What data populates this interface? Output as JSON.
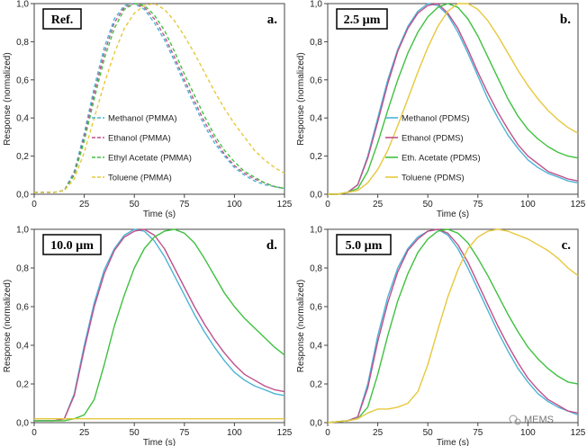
{
  "colors": {
    "Methanol": "#4bb4d6",
    "Ethanol": "#c0508a",
    "Ethyl Acetate": "#3fc13f",
    "Toluene": "#e6c83c"
  },
  "axes": {
    "xlabel": "Time (s)",
    "ylabel": "Response (normalized)",
    "x_ticks": [
      "0",
      "25",
      "50",
      "75",
      "100",
      "125"
    ],
    "y_ticks": [
      "0,0",
      "0,2",
      "0,4",
      "0,6",
      "0,8",
      "1,0"
    ]
  },
  "chart_data": [
    {
      "type": "line",
      "tag": "Ref.",
      "letter": "a.",
      "dashed": true,
      "xlim": [
        0,
        125
      ],
      "ylim": [
        0,
        1
      ],
      "grid": false,
      "legend_position": "bottom-center",
      "series": [
        {
          "name": "Methanol (PMMA)",
          "key": "Methanol",
          "x": [
            0,
            10,
            15,
            20,
            25,
            30,
            35,
            40,
            45,
            50,
            55,
            60,
            65,
            70,
            75,
            80,
            85,
            90,
            95,
            100,
            105,
            110,
            115,
            120,
            125
          ],
          "y": [
            0.01,
            0.01,
            0.02,
            0.12,
            0.32,
            0.56,
            0.77,
            0.92,
            0.99,
            1.0,
            0.97,
            0.9,
            0.81,
            0.7,
            0.58,
            0.47,
            0.36,
            0.27,
            0.2,
            0.14,
            0.1,
            0.07,
            0.05,
            0.04,
            0.03
          ]
        },
        {
          "name": "Ethanol (PMMA)",
          "key": "Ethanol",
          "x": [
            0,
            10,
            15,
            20,
            25,
            30,
            35,
            40,
            45,
            50,
            55,
            60,
            65,
            70,
            75,
            80,
            85,
            90,
            95,
            100,
            105,
            110,
            115,
            120,
            125
          ],
          "y": [
            0.01,
            0.01,
            0.02,
            0.11,
            0.3,
            0.53,
            0.74,
            0.9,
            0.98,
            1.0,
            0.98,
            0.92,
            0.83,
            0.72,
            0.6,
            0.49,
            0.38,
            0.29,
            0.21,
            0.15,
            0.11,
            0.08,
            0.06,
            0.04,
            0.03
          ]
        },
        {
          "name": "Ethyl Acetate (PMMA)",
          "key": "Ethyl Acetate",
          "x": [
            0,
            10,
            15,
            20,
            25,
            30,
            35,
            40,
            45,
            50,
            55,
            60,
            65,
            70,
            75,
            80,
            85,
            90,
            95,
            100,
            105,
            110,
            115,
            120,
            125
          ],
          "y": [
            0.01,
            0.01,
            0.02,
            0.1,
            0.28,
            0.5,
            0.71,
            0.87,
            0.97,
            1.0,
            0.99,
            0.94,
            0.86,
            0.75,
            0.63,
            0.52,
            0.41,
            0.31,
            0.23,
            0.17,
            0.12,
            0.09,
            0.06,
            0.04,
            0.03
          ]
        },
        {
          "name": "Toluene (PMMA)",
          "key": "Toluene",
          "x": [
            0,
            10,
            15,
            20,
            25,
            30,
            35,
            40,
            45,
            50,
            55,
            60,
            65,
            70,
            75,
            80,
            85,
            90,
            95,
            100,
            105,
            110,
            115,
            120,
            125
          ],
          "y": [
            0.01,
            0.01,
            0.02,
            0.08,
            0.22,
            0.4,
            0.58,
            0.74,
            0.87,
            0.95,
            0.99,
            1.0,
            0.97,
            0.91,
            0.83,
            0.74,
            0.64,
            0.54,
            0.45,
            0.37,
            0.3,
            0.23,
            0.18,
            0.14,
            0.11
          ]
        }
      ]
    },
    {
      "type": "line",
      "tag": "2.5 µm",
      "letter": "b.",
      "dashed": false,
      "xlim": [
        0,
        125
      ],
      "ylim": [
        0,
        1
      ],
      "grid": false,
      "legend_position": "bottom-center",
      "series": [
        {
          "name": "Methanol (PDMS)",
          "key": "Methanol",
          "x": [
            0,
            5,
            10,
            15,
            20,
            25,
            30,
            35,
            40,
            45,
            50,
            55,
            60,
            65,
            70,
            75,
            80,
            85,
            90,
            95,
            100,
            105,
            110,
            115,
            120,
            125
          ],
          "y": [
            0.0,
            0.0,
            0.01,
            0.05,
            0.2,
            0.4,
            0.6,
            0.76,
            0.88,
            0.96,
            1.0,
            0.99,
            0.94,
            0.85,
            0.74,
            0.62,
            0.5,
            0.4,
            0.31,
            0.24,
            0.18,
            0.14,
            0.11,
            0.09,
            0.07,
            0.06
          ]
        },
        {
          "name": "Ethanol (PDMS)",
          "key": "Ethanol",
          "x": [
            0,
            5,
            10,
            15,
            20,
            25,
            30,
            35,
            40,
            45,
            50,
            55,
            60,
            65,
            70,
            75,
            80,
            85,
            90,
            95,
            100,
            105,
            110,
            115,
            120,
            125
          ],
          "y": [
            0.0,
            0.0,
            0.01,
            0.05,
            0.19,
            0.38,
            0.58,
            0.75,
            0.87,
            0.95,
            0.99,
            1.0,
            0.95,
            0.87,
            0.76,
            0.64,
            0.53,
            0.43,
            0.34,
            0.26,
            0.2,
            0.16,
            0.12,
            0.1,
            0.08,
            0.07
          ]
        },
        {
          "name": "Eth. Acetate (PDMS)",
          "key": "Ethyl Acetate",
          "x": [
            0,
            5,
            10,
            15,
            20,
            25,
            30,
            35,
            40,
            45,
            50,
            55,
            60,
            65,
            70,
            75,
            80,
            85,
            90,
            95,
            100,
            105,
            110,
            115,
            120,
            125
          ],
          "y": [
            0.0,
            0.0,
            0.01,
            0.03,
            0.12,
            0.27,
            0.44,
            0.6,
            0.74,
            0.85,
            0.93,
            0.98,
            1.0,
            0.98,
            0.92,
            0.83,
            0.72,
            0.61,
            0.5,
            0.41,
            0.34,
            0.29,
            0.25,
            0.22,
            0.2,
            0.19
          ]
        },
        {
          "name": "Toluene (PDMS)",
          "key": "Toluene",
          "x": [
            0,
            5,
            10,
            15,
            20,
            25,
            30,
            35,
            40,
            45,
            50,
            55,
            60,
            65,
            70,
            75,
            80,
            85,
            90,
            95,
            100,
            105,
            110,
            115,
            120,
            125
          ],
          "y": [
            0.0,
            0.0,
            0.01,
            0.02,
            0.06,
            0.13,
            0.23,
            0.36,
            0.5,
            0.64,
            0.77,
            0.88,
            0.96,
            1.0,
            1.0,
            0.97,
            0.91,
            0.83,
            0.74,
            0.65,
            0.57,
            0.5,
            0.44,
            0.39,
            0.35,
            0.32
          ]
        }
      ]
    },
    {
      "type": "line",
      "tag": "10.0 µm",
      "letter": "d.",
      "dashed": false,
      "xlim": [
        0,
        125
      ],
      "ylim": [
        0,
        1
      ],
      "grid": false,
      "legend_position": "none",
      "series": [
        {
          "name": "Methanol",
          "key": "Methanol",
          "x": [
            0,
            10,
            15,
            20,
            25,
            30,
            35,
            40,
            45,
            50,
            55,
            60,
            65,
            70,
            75,
            80,
            85,
            90,
            95,
            100,
            105,
            110,
            115,
            120,
            125
          ],
          "y": [
            0.01,
            0.01,
            0.02,
            0.15,
            0.4,
            0.62,
            0.79,
            0.9,
            0.97,
            1.0,
            0.99,
            0.94,
            0.86,
            0.76,
            0.66,
            0.56,
            0.47,
            0.39,
            0.32,
            0.26,
            0.22,
            0.19,
            0.17,
            0.15,
            0.14
          ]
        },
        {
          "name": "Ethanol",
          "key": "Ethanol",
          "x": [
            0,
            10,
            15,
            20,
            25,
            30,
            35,
            40,
            45,
            50,
            55,
            60,
            65,
            70,
            75,
            80,
            85,
            90,
            95,
            100,
            105,
            110,
            115,
            120,
            125
          ],
          "y": [
            0.01,
            0.01,
            0.02,
            0.14,
            0.38,
            0.6,
            0.77,
            0.89,
            0.96,
            0.99,
            1.0,
            0.97,
            0.9,
            0.8,
            0.7,
            0.6,
            0.51,
            0.43,
            0.36,
            0.3,
            0.25,
            0.22,
            0.19,
            0.17,
            0.16
          ]
        },
        {
          "name": "Ethyl Acetate",
          "key": "Ethyl Acetate",
          "x": [
            0,
            10,
            15,
            20,
            25,
            30,
            35,
            40,
            45,
            50,
            55,
            60,
            65,
            70,
            75,
            80,
            85,
            90,
            95,
            100,
            105,
            110,
            115,
            120,
            125
          ],
          "y": [
            0.01,
            0.01,
            0.01,
            0.02,
            0.04,
            0.12,
            0.3,
            0.5,
            0.66,
            0.8,
            0.9,
            0.96,
            0.99,
            1.0,
            0.98,
            0.93,
            0.85,
            0.76,
            0.67,
            0.6,
            0.54,
            0.49,
            0.44,
            0.39,
            0.35
          ]
        },
        {
          "name": "Toluene",
          "key": "Toluene",
          "x": [
            0,
            25,
            50,
            75,
            100,
            125
          ],
          "y": [
            0.02,
            0.02,
            0.02,
            0.02,
            0.02,
            0.02
          ]
        }
      ]
    },
    {
      "type": "line",
      "tag": "5.0 µm",
      "letter": "c.",
      "dashed": false,
      "xlim": [
        0,
        125
      ],
      "ylim": [
        0,
        1
      ],
      "grid": false,
      "legend_position": "none",
      "series": [
        {
          "name": "Methanol",
          "key": "Methanol",
          "x": [
            0,
            10,
            15,
            20,
            25,
            30,
            35,
            40,
            45,
            50,
            55,
            60,
            65,
            70,
            75,
            80,
            85,
            90,
            95,
            100,
            105,
            110,
            115,
            120,
            125
          ],
          "y": [
            0.0,
            0.01,
            0.03,
            0.2,
            0.45,
            0.65,
            0.8,
            0.9,
            0.96,
            0.99,
            1.0,
            0.97,
            0.9,
            0.8,
            0.69,
            0.58,
            0.47,
            0.37,
            0.28,
            0.21,
            0.15,
            0.11,
            0.08,
            0.06,
            0.04
          ]
        },
        {
          "name": "Ethanol",
          "key": "Ethanol",
          "x": [
            0,
            10,
            15,
            20,
            25,
            30,
            35,
            40,
            45,
            50,
            55,
            60,
            65,
            70,
            75,
            80,
            85,
            90,
            95,
            100,
            105,
            110,
            115,
            120,
            125
          ],
          "y": [
            0.0,
            0.01,
            0.03,
            0.18,
            0.42,
            0.62,
            0.78,
            0.89,
            0.95,
            0.99,
            1.0,
            0.98,
            0.92,
            0.83,
            0.72,
            0.61,
            0.5,
            0.4,
            0.31,
            0.23,
            0.17,
            0.12,
            0.09,
            0.06,
            0.05
          ]
        },
        {
          "name": "Ethyl Acetate",
          "key": "Ethyl Acetate",
          "x": [
            0,
            10,
            15,
            20,
            25,
            30,
            35,
            40,
            45,
            50,
            55,
            60,
            65,
            70,
            75,
            80,
            85,
            90,
            95,
            100,
            105,
            110,
            115,
            120,
            125
          ],
          "y": [
            0.0,
            0.01,
            0.02,
            0.08,
            0.25,
            0.45,
            0.63,
            0.77,
            0.88,
            0.95,
            0.99,
            1.0,
            0.98,
            0.93,
            0.85,
            0.76,
            0.66,
            0.56,
            0.47,
            0.39,
            0.33,
            0.28,
            0.24,
            0.21,
            0.2
          ]
        },
        {
          "name": "Toluene",
          "key": "Toluene",
          "x": [
            0,
            10,
            15,
            20,
            25,
            30,
            35,
            40,
            45,
            50,
            55,
            60,
            65,
            70,
            75,
            80,
            85,
            90,
            95,
            100,
            105,
            110,
            115,
            120,
            125
          ],
          "y": [
            0.0,
            0.01,
            0.02,
            0.05,
            0.07,
            0.07,
            0.08,
            0.1,
            0.16,
            0.3,
            0.48,
            0.65,
            0.79,
            0.9,
            0.96,
            0.99,
            1.0,
            0.99,
            0.97,
            0.95,
            0.92,
            0.89,
            0.85,
            0.8,
            0.76
          ]
        }
      ]
    }
  ],
  "watermark": "MEMS"
}
